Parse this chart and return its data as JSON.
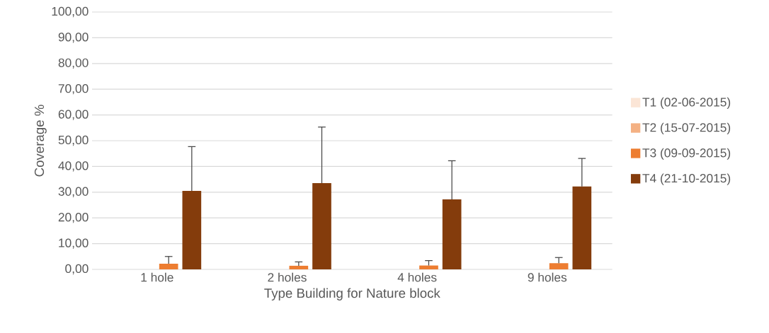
{
  "chart_data": {
    "type": "bar",
    "xlabel": "Type Building for Nature block",
    "ylabel": "Coverage %",
    "categories": [
      "1 hole",
      "2 holes",
      "4 holes",
      "9 holes"
    ],
    "series": [
      {
        "name": "T1 (02-06-2015)",
        "color": "#fbe5d6",
        "values": [
          0,
          0,
          0,
          0
        ]
      },
      {
        "name": "T2 (15-07-2015)",
        "color": "#f4b183",
        "values": [
          0,
          0,
          0,
          0
        ]
      },
      {
        "name": "T3 (09-09-2015)",
        "color": "#ed7d31",
        "values": [
          2.2,
          1.4,
          1.5,
          2.4
        ],
        "errors": [
          [
            2.2,
            5.0
          ],
          [
            1.4,
            2.9
          ],
          [
            1.5,
            3.4
          ],
          [
            2.4,
            4.6
          ]
        ]
      },
      {
        "name": "T4 (21-10-2015)",
        "color": "#843c0c",
        "values": [
          30.5,
          33.5,
          27.2,
          32.2
        ],
        "errors": [
          [
            30.5,
            47.7
          ],
          [
            33.5,
            55.3
          ],
          [
            27.2,
            42.2
          ],
          [
            32.2,
            43.1
          ]
        ]
      }
    ],
    "ylim": [
      0,
      100
    ],
    "yticks": [
      {
        "value": 0,
        "label": "0,00"
      },
      {
        "value": 10,
        "label": "10,00"
      },
      {
        "value": 20,
        "label": "20,00"
      },
      {
        "value": 30,
        "label": "30,00"
      },
      {
        "value": 40,
        "label": "40,00"
      },
      {
        "value": 50,
        "label": "50,00"
      },
      {
        "value": 60,
        "label": "60,00"
      },
      {
        "value": 70,
        "label": "70,00"
      },
      {
        "value": 80,
        "label": "80,00"
      },
      {
        "value": 90,
        "label": "90,00"
      },
      {
        "value": 100,
        "label": "100,00"
      }
    ],
    "grid": "y",
    "legend": "right"
  }
}
